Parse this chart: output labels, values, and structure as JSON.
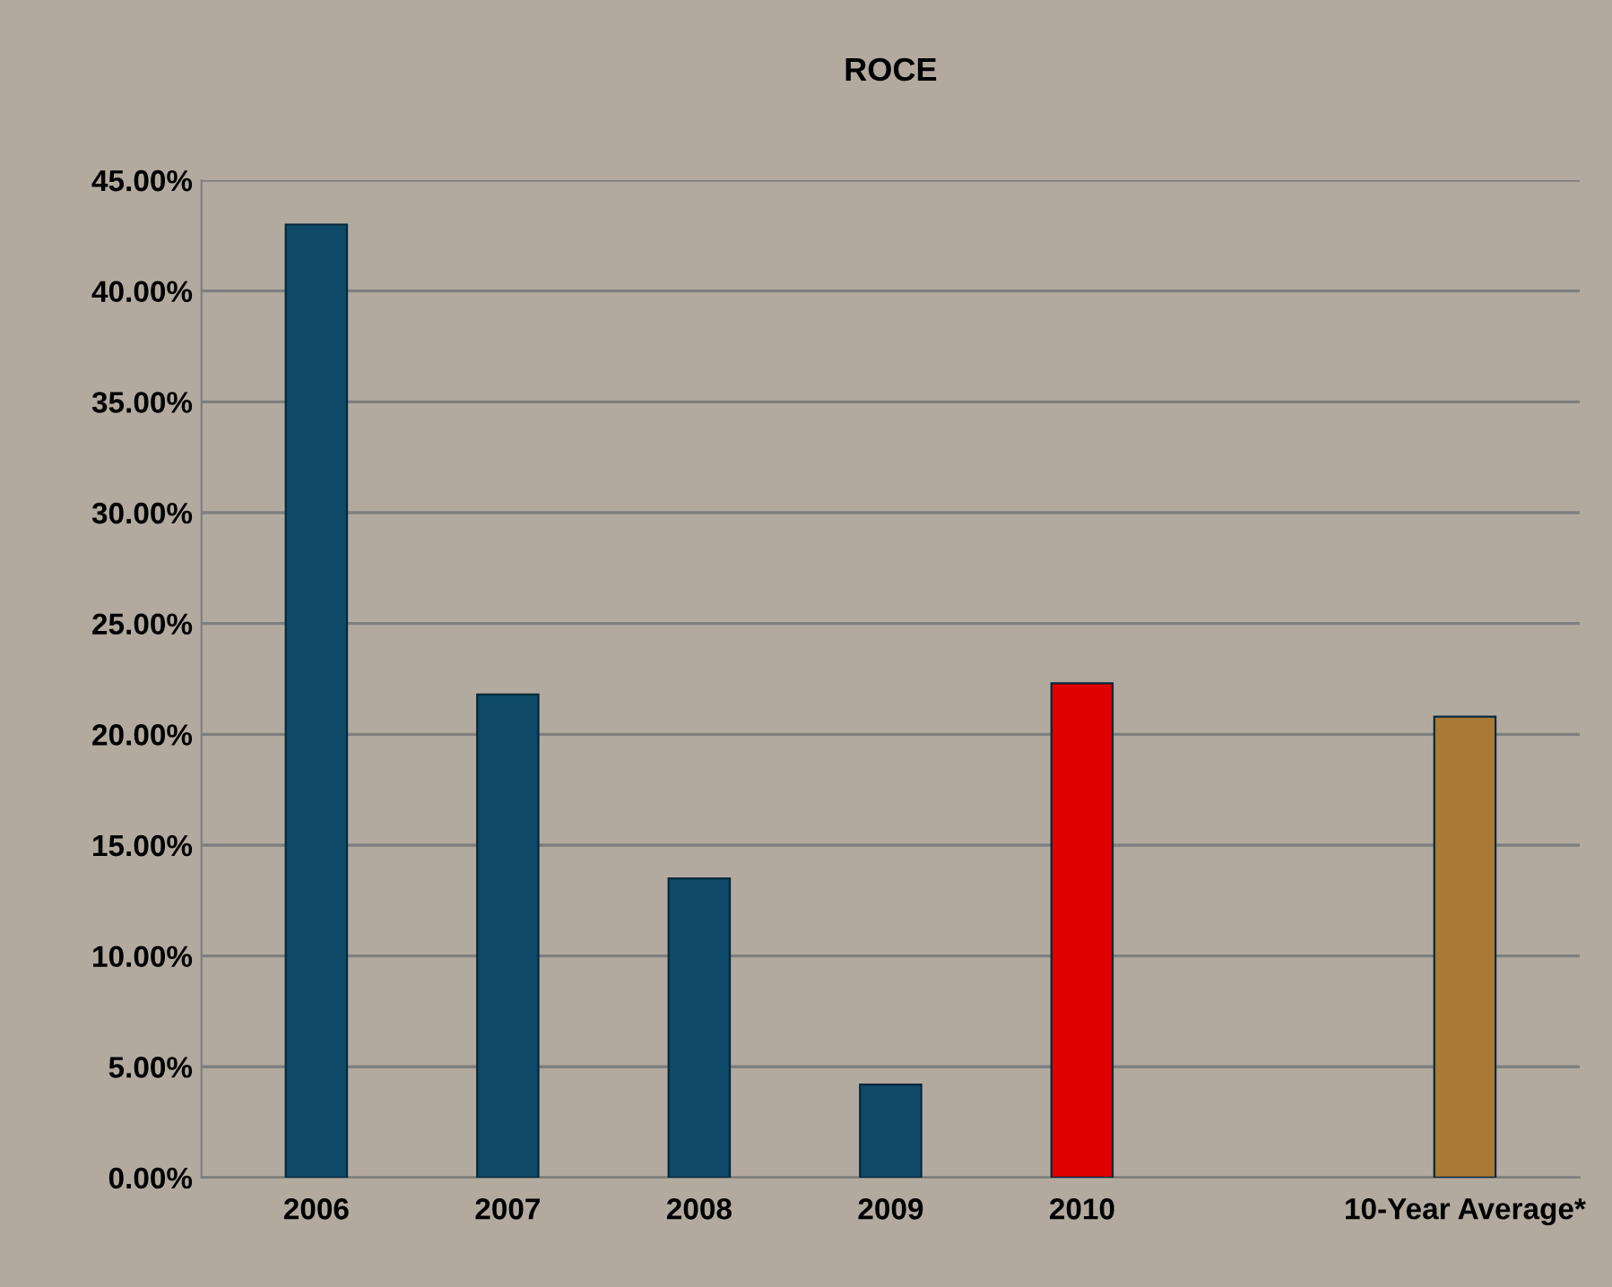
{
  "chart_data": {
    "type": "bar",
    "title": "ROCE",
    "categories": [
      "2006",
      "2007",
      "2008",
      "2009",
      "2010",
      null,
      "10-Year Average*"
    ],
    "values": [
      43.0,
      21.8,
      13.5,
      4.2,
      22.3,
      null,
      20.8
    ],
    "colors": [
      "#0e4a68",
      "#0e4a68",
      "#0e4a68",
      "#0e4a68",
      "#e00000",
      null,
      "#a87a35"
    ],
    "ylim": [
      0,
      45
    ],
    "yticks": [
      {
        "value": 0,
        "label": "0.00%"
      },
      {
        "value": 5,
        "label": "5.00%"
      },
      {
        "value": 10,
        "label": "10.00%"
      },
      {
        "value": 15,
        "label": "15.00%"
      },
      {
        "value": 20,
        "label": "20.00%"
      },
      {
        "value": 25,
        "label": "25.00%"
      },
      {
        "value": 30,
        "label": "30.00%"
      },
      {
        "value": 35,
        "label": "35.00%"
      },
      {
        "value": 40,
        "label": "40.00%"
      },
      {
        "value": 45,
        "label": "45.00%"
      }
    ],
    "grid": "y",
    "legend": false
  }
}
